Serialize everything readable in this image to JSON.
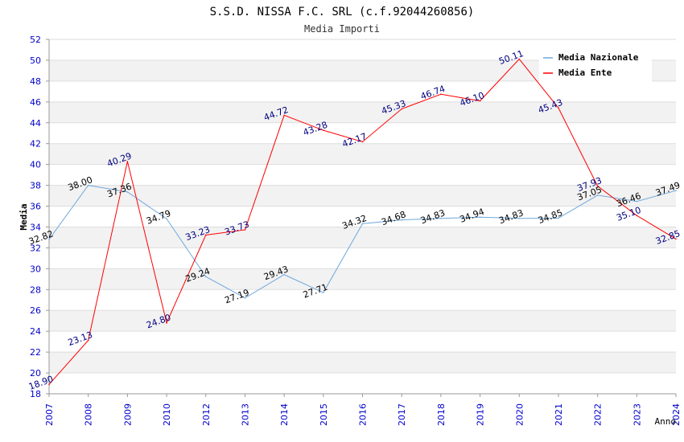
{
  "chart_data": {
    "type": "line",
    "title": "S.S.D. NISSA F.C. SRL (c.f.92044260856)",
    "subtitle": "Media Importi",
    "xlabel": "Anno",
    "ylabel": "Media",
    "ylim": [
      18,
      52
    ],
    "ytick_step": 2,
    "grid": true,
    "legend_position": "top-right",
    "categories": [
      "2007",
      "2008",
      "2009",
      "2010",
      "2012",
      "2013",
      "2014",
      "2015",
      "2016",
      "2017",
      "2018",
      "2019",
      "2020",
      "2021",
      "2022",
      "2023",
      "2024"
    ],
    "series": [
      {
        "name": "Media Nazionale",
        "color": "#6fa8dc",
        "label_color": "#000000",
        "values": [
          32.82,
          38.0,
          37.36,
          34.79,
          29.24,
          27.19,
          29.43,
          27.71,
          34.32,
          34.68,
          34.83,
          34.94,
          34.83,
          34.85,
          37.05,
          36.46,
          37.49
        ],
        "labels": [
          "32.82",
          "38.00",
          "37.36",
          "34.79",
          "29.24",
          "27.19",
          "29.43",
          "27.71",
          "34.32",
          "34.68",
          "34.83",
          "34.94",
          "34.83",
          "34.85",
          "37.05",
          "36.46",
          "37.49"
        ]
      },
      {
        "name": "Media Ente",
        "color": "#ff0000",
        "label_color": "#000080",
        "values": [
          18.9,
          23.13,
          40.29,
          24.8,
          33.23,
          33.73,
          44.72,
          43.28,
          42.17,
          45.33,
          46.74,
          46.1,
          50.11,
          45.43,
          37.93,
          35.1,
          32.85
        ],
        "labels": [
          "18.90",
          "23.13",
          "40.29",
          "24.80",
          "33.23",
          "33.73",
          "44.72",
          "43.28",
          "42.17",
          "45.33",
          "46.74",
          "46.10",
          "50.11",
          "45.43",
          "37.93",
          "35.10",
          "32.85"
        ]
      }
    ],
    "colors": {
      "axis_text": "#0000cc",
      "band": "#f2f2f2",
      "grid": "#dddddd"
    }
  }
}
